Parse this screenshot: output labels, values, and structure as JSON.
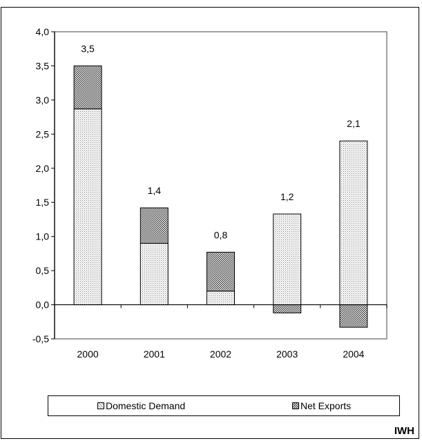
{
  "chart_data": {
    "type": "bar",
    "stacked": true,
    "categories": [
      "2000",
      "2001",
      "2002",
      "2003",
      "2004"
    ],
    "series": [
      {
        "name": "Domestic Demand",
        "values": [
          2.87,
          0.9,
          0.2,
          1.33,
          2.4
        ],
        "pattern": "fine-dots"
      },
      {
        "name": "Net Exports",
        "values": [
          0.63,
          0.52,
          0.57,
          -0.12,
          -0.33
        ],
        "pattern": "dense-checker"
      }
    ],
    "totals_labels": [
      "3,5",
      "1,4",
      "0,8",
      "1,2",
      "2,1"
    ],
    "y_tick_labels": [
      "4,0",
      "3,5",
      "3,0",
      "2,5",
      "2,0",
      "1,5",
      "1,0",
      "0,5",
      "0,0",
      "-0,5"
    ],
    "ylim": [
      -0.5,
      4.0
    ],
    "grid": false,
    "legend_position": "bottom"
  },
  "legend": {
    "domestic_label": "Domestic Demand",
    "net_exports_label": "Net Exports"
  },
  "source": "IWH"
}
